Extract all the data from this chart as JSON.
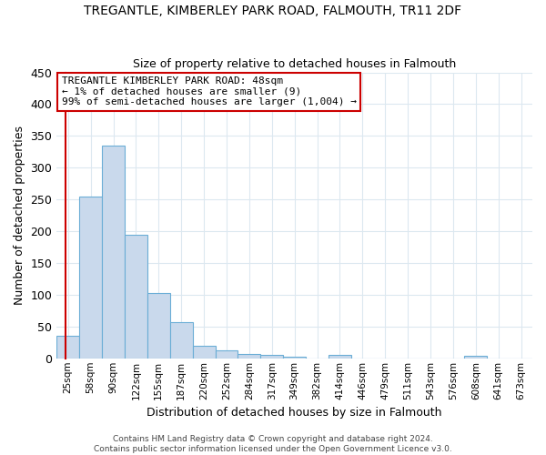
{
  "title": "TREGANTLE, KIMBERLEY PARK ROAD, FALMOUTH, TR11 2DF",
  "subtitle": "Size of property relative to detached houses in Falmouth",
  "xlabel": "Distribution of detached houses by size in Falmouth",
  "ylabel": "Number of detached properties",
  "bar_labels": [
    "25sqm",
    "58sqm",
    "90sqm",
    "122sqm",
    "155sqm",
    "187sqm",
    "220sqm",
    "252sqm",
    "284sqm",
    "317sqm",
    "349sqm",
    "382sqm",
    "414sqm",
    "446sqm",
    "479sqm",
    "511sqm",
    "543sqm",
    "576sqm",
    "608sqm",
    "641sqm",
    "673sqm"
  ],
  "bar_values": [
    35,
    255,
    335,
    195,
    103,
    57,
    20,
    12,
    7,
    5,
    3,
    0,
    5,
    0,
    0,
    0,
    0,
    0,
    4,
    0,
    0
  ],
  "bar_color": "#c9d9ec",
  "bar_edgecolor": "#6baed6",
  "ylim": [
    0,
    450
  ],
  "yticks": [
    0,
    50,
    100,
    150,
    200,
    250,
    300,
    350,
    400,
    450
  ],
  "annotation_title": "TREGANTLE KIMBERLEY PARK ROAD: 48sqm",
  "annotation_line1": "← 1% of detached houses are smaller (9)",
  "annotation_line2": "99% of semi-detached houses are larger (1,004) →",
  "footer_line1": "Contains HM Land Registry data © Crown copyright and database right 2024.",
  "footer_line2": "Contains public sector information licensed under the Open Government Licence v3.0.",
  "title_fontsize": 10,
  "subtitle_fontsize": 9,
  "bg_color": "#ffffff",
  "grid_color": "#dce8f0"
}
